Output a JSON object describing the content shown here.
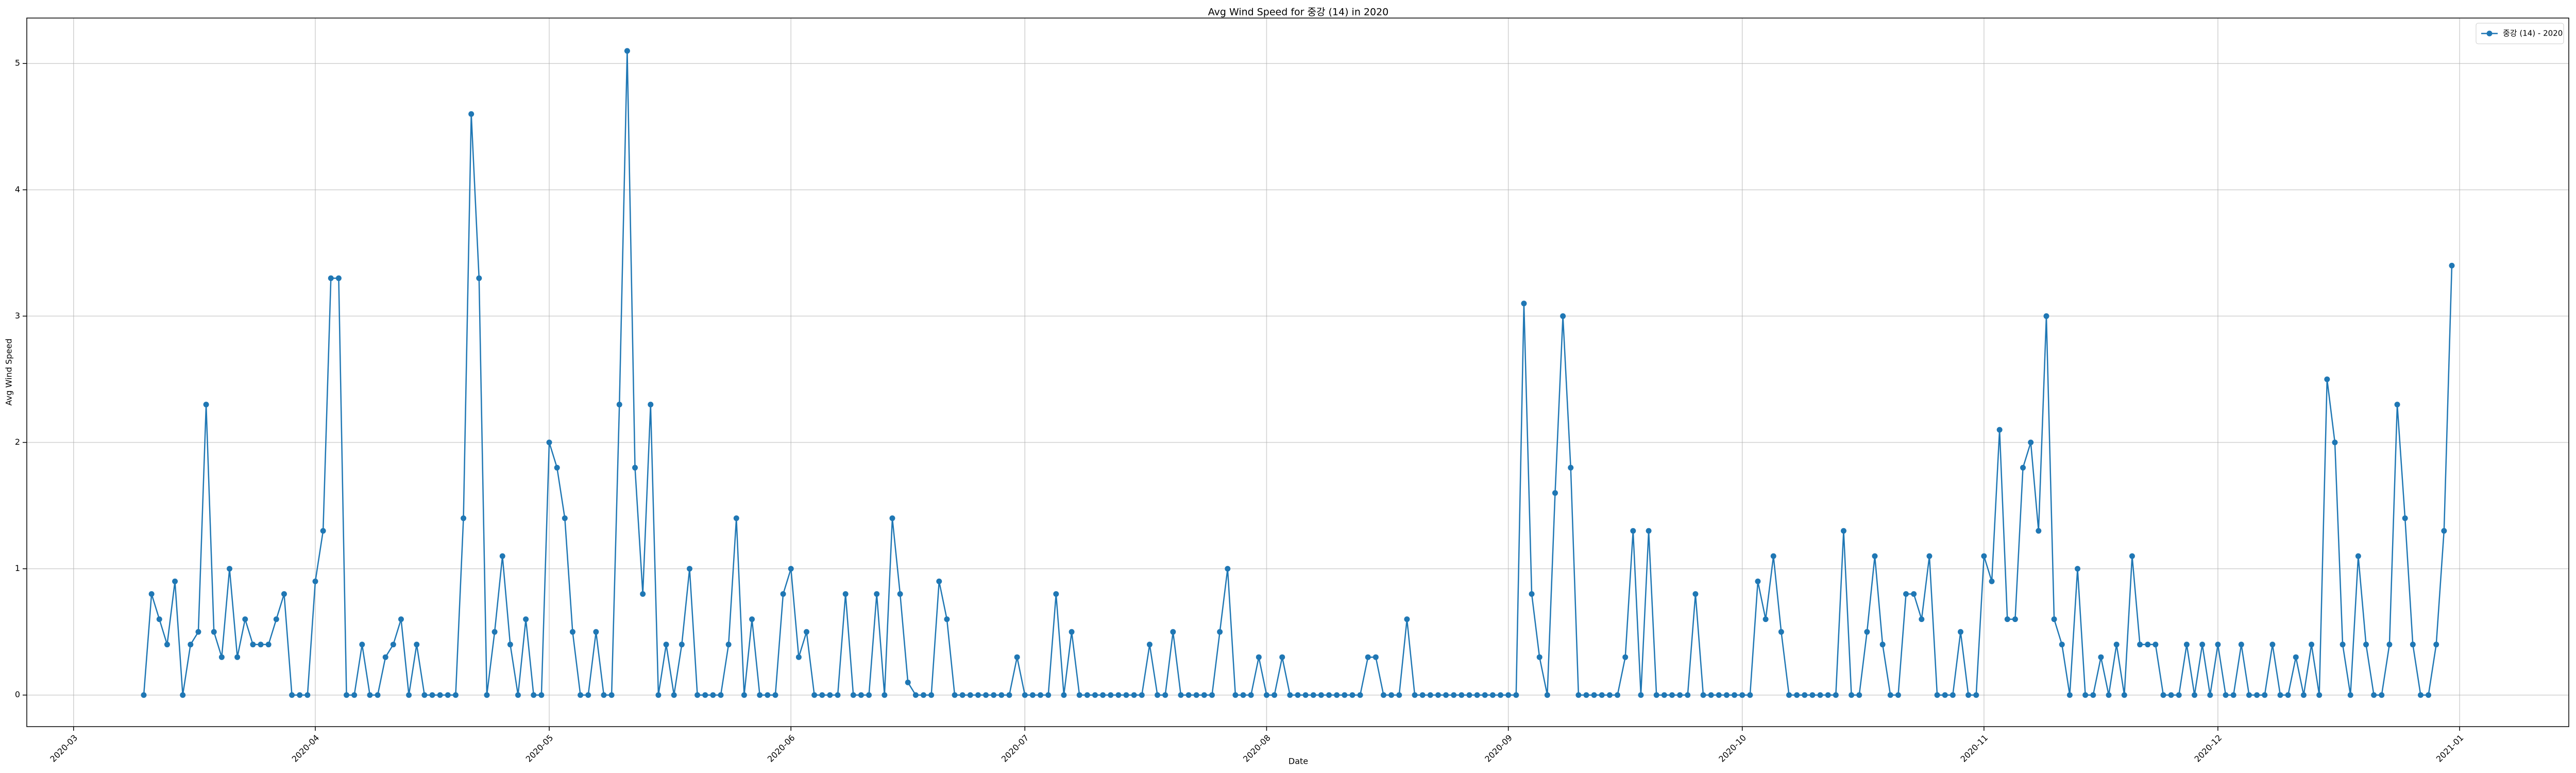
{
  "chart_data": {
    "type": "line",
    "title": "Avg Wind Speed for 중강 (14) in 2020",
    "xlabel": "Date",
    "ylabel": "Avg Wind Speed",
    "x": [
      "2020-03-10",
      "2020-03-11",
      "2020-03-12",
      "2020-03-13",
      "2020-03-14",
      "2020-03-15",
      "2020-03-16",
      "2020-03-17",
      "2020-03-18",
      "2020-03-19",
      "2020-03-20",
      "2020-03-21",
      "2020-03-22",
      "2020-03-23",
      "2020-03-24",
      "2020-03-25",
      "2020-03-26",
      "2020-03-27",
      "2020-03-28",
      "2020-03-29",
      "2020-03-30",
      "2020-03-31",
      "2020-04-01",
      "2020-04-02",
      "2020-04-03",
      "2020-04-04",
      "2020-04-05",
      "2020-04-06",
      "2020-04-07",
      "2020-04-08",
      "2020-04-09",
      "2020-04-10",
      "2020-04-11",
      "2020-04-12",
      "2020-04-13",
      "2020-04-14",
      "2020-04-15",
      "2020-04-16",
      "2020-04-17",
      "2020-04-18",
      "2020-04-19",
      "2020-04-20",
      "2020-04-21",
      "2020-04-22",
      "2020-04-23",
      "2020-04-24",
      "2020-04-25",
      "2020-04-26",
      "2020-04-27",
      "2020-04-28",
      "2020-04-29",
      "2020-04-30",
      "2020-05-01",
      "2020-05-02",
      "2020-05-03",
      "2020-05-04",
      "2020-05-05",
      "2020-05-06",
      "2020-05-07",
      "2020-05-08",
      "2020-05-09",
      "2020-05-10",
      "2020-05-11",
      "2020-05-12",
      "2020-05-13",
      "2020-05-14",
      "2020-05-15",
      "2020-05-16",
      "2020-05-17",
      "2020-05-18",
      "2020-05-19",
      "2020-05-20",
      "2020-05-21",
      "2020-05-22",
      "2020-05-23",
      "2020-05-24",
      "2020-05-25",
      "2020-05-26",
      "2020-05-27",
      "2020-05-28",
      "2020-05-29",
      "2020-05-30",
      "2020-05-31",
      "2020-06-01",
      "2020-06-02",
      "2020-06-03",
      "2020-06-04",
      "2020-06-05",
      "2020-06-06",
      "2020-06-07",
      "2020-06-08",
      "2020-06-09",
      "2020-06-10",
      "2020-06-11",
      "2020-06-12",
      "2020-06-13",
      "2020-06-14",
      "2020-06-15",
      "2020-06-16",
      "2020-06-17",
      "2020-06-18",
      "2020-06-19",
      "2020-06-20",
      "2020-06-21",
      "2020-06-22",
      "2020-06-23",
      "2020-06-24",
      "2020-06-25",
      "2020-06-26",
      "2020-06-27",
      "2020-06-28",
      "2020-06-29",
      "2020-06-30",
      "2020-07-01",
      "2020-07-02",
      "2020-07-03",
      "2020-07-04",
      "2020-07-05",
      "2020-07-06",
      "2020-07-07",
      "2020-07-08",
      "2020-07-09",
      "2020-07-10",
      "2020-07-11",
      "2020-07-12",
      "2020-07-13",
      "2020-07-14",
      "2020-07-15",
      "2020-07-16",
      "2020-07-17",
      "2020-07-18",
      "2020-07-19",
      "2020-07-20",
      "2020-07-21",
      "2020-07-22",
      "2020-07-23",
      "2020-07-24",
      "2020-07-25",
      "2020-07-26",
      "2020-07-27",
      "2020-07-28",
      "2020-07-29",
      "2020-07-30",
      "2020-07-31",
      "2020-08-01",
      "2020-08-02",
      "2020-08-03",
      "2020-08-04",
      "2020-08-05",
      "2020-08-06",
      "2020-08-07",
      "2020-08-08",
      "2020-08-09",
      "2020-08-10",
      "2020-08-11",
      "2020-08-12",
      "2020-08-13",
      "2020-08-14",
      "2020-08-15",
      "2020-08-16",
      "2020-08-17",
      "2020-08-18",
      "2020-08-19",
      "2020-08-20",
      "2020-08-21",
      "2020-08-22",
      "2020-08-23",
      "2020-08-24",
      "2020-08-25",
      "2020-08-26",
      "2020-08-27",
      "2020-08-28",
      "2020-08-29",
      "2020-08-30",
      "2020-08-31",
      "2020-09-01",
      "2020-09-02",
      "2020-09-03",
      "2020-09-04",
      "2020-09-05",
      "2020-09-06",
      "2020-09-07",
      "2020-09-08",
      "2020-09-09",
      "2020-09-10",
      "2020-09-11",
      "2020-09-12",
      "2020-09-13",
      "2020-09-14",
      "2020-09-15",
      "2020-09-16",
      "2020-09-17",
      "2020-09-18",
      "2020-09-19",
      "2020-09-20",
      "2020-09-21",
      "2020-09-22",
      "2020-09-23",
      "2020-09-24",
      "2020-09-25",
      "2020-09-26",
      "2020-09-27",
      "2020-09-28",
      "2020-09-29",
      "2020-09-30",
      "2020-10-01",
      "2020-10-02",
      "2020-10-03",
      "2020-10-04",
      "2020-10-05",
      "2020-10-06",
      "2020-10-07",
      "2020-10-08",
      "2020-10-09",
      "2020-10-10",
      "2020-10-11",
      "2020-10-12",
      "2020-10-13",
      "2020-10-14",
      "2020-10-15",
      "2020-10-16",
      "2020-10-17",
      "2020-10-18",
      "2020-10-19",
      "2020-10-20",
      "2020-10-21",
      "2020-10-22",
      "2020-10-23",
      "2020-10-24",
      "2020-10-25",
      "2020-10-26",
      "2020-10-27",
      "2020-10-28",
      "2020-10-29",
      "2020-10-30",
      "2020-10-31",
      "2020-11-01",
      "2020-11-02",
      "2020-11-03",
      "2020-11-04",
      "2020-11-05",
      "2020-11-06",
      "2020-11-07",
      "2020-11-08",
      "2020-11-09",
      "2020-11-10",
      "2020-11-11",
      "2020-11-12",
      "2020-11-13",
      "2020-11-14",
      "2020-11-15",
      "2020-11-16",
      "2020-11-17",
      "2020-11-18",
      "2020-11-19",
      "2020-11-20",
      "2020-11-21",
      "2020-11-22",
      "2020-11-23",
      "2020-11-24",
      "2020-11-25",
      "2020-11-26",
      "2020-11-27",
      "2020-11-28",
      "2020-11-29",
      "2020-11-30",
      "2020-12-01",
      "2020-12-02",
      "2020-12-03",
      "2020-12-04",
      "2020-12-05",
      "2020-12-06",
      "2020-12-07",
      "2020-12-08",
      "2020-12-09",
      "2020-12-10",
      "2020-12-11",
      "2020-12-12",
      "2020-12-13",
      "2020-12-14",
      "2020-12-15",
      "2020-12-16",
      "2020-12-17",
      "2020-12-18",
      "2020-12-19",
      "2020-12-20",
      "2020-12-21",
      "2020-12-22",
      "2020-12-23",
      "2020-12-24",
      "2020-12-25",
      "2020-12-26",
      "2020-12-27",
      "2020-12-28",
      "2020-12-29",
      "2020-12-30",
      "2020-12-31"
    ],
    "series": [
      {
        "name": "중강 (14) - 2020",
        "color": "#1f77b4",
        "values": [
          0,
          0.8,
          0.6,
          0.4,
          0.9,
          0,
          0.4,
          0.5,
          2.3,
          0.5,
          0.3,
          1.0,
          0.3,
          0.6,
          0.4,
          0.4,
          0.4,
          0.6,
          0.8,
          0,
          0,
          0,
          0.9,
          1.3,
          3.3,
          3.3,
          0,
          0,
          0.4,
          0,
          0,
          0.3,
          0.4,
          0.6,
          0,
          0.4,
          0,
          0,
          0,
          0,
          0,
          1.4,
          4.6,
          3.3,
          0,
          0.5,
          1.1,
          0.4,
          0,
          0.6,
          0,
          0,
          2.0,
          1.8,
          1.4,
          0.5,
          0,
          0,
          0.5,
          0,
          0,
          2.3,
          5.1,
          1.8,
          0.8,
          2.3,
          0,
          0.4,
          0,
          0.4,
          1.0,
          0,
          0,
          0,
          0,
          0.4,
          1.4,
          0,
          0.6,
          0,
          0,
          0,
          0.8,
          1.0,
          0.3,
          0.5,
          0,
          0,
          0,
          0,
          0.8,
          0,
          0,
          0,
          0.8,
          0,
          1.4,
          0.8,
          0.1,
          0,
          0,
          0,
          0.9,
          0.6,
          0,
          0,
          0,
          0,
          0,
          0,
          0,
          0,
          0.3,
          0,
          0,
          0,
          0,
          0.8,
          0,
          0.5,
          0,
          0,
          0,
          0,
          0,
          0,
          0,
          0,
          0,
          0.4,
          0,
          0,
          0.5,
          0,
          0,
          0,
          0,
          0,
          0.5,
          1.0,
          0,
          0,
          0,
          0.3,
          0,
          0,
          0.3,
          0,
          0,
          0,
          0,
          0,
          0,
          0,
          0,
          0,
          0,
          0.3,
          0.3,
          0,
          0,
          0,
          0.6,
          0,
          0,
          0,
          0,
          0,
          0,
          0,
          0,
          0,
          0,
          0,
          0,
          0,
          0,
          3.1,
          0.8,
          0.3,
          0,
          1.6,
          3.0,
          1.8,
          0,
          0,
          0,
          0,
          0,
          0,
          0.3,
          1.3,
          0,
          1.3,
          0,
          0,
          0,
          0,
          0,
          0.8,
          0,
          0,
          0,
          0,
          0,
          0,
          0,
          0.9,
          0.6,
          1.1,
          0.5,
          0,
          0,
          0,
          0,
          0,
          0,
          0,
          1.3,
          0,
          0,
          0.5,
          1.1,
          0.4,
          0,
          0,
          0.8,
          0.8,
          0.6,
          1.1,
          0,
          0,
          0,
          0.5,
          0,
          0,
          1.1,
          0.9,
          2.1,
          0.6,
          0.6,
          1.8,
          2.0,
          1.3,
          3.0,
          0.6,
          0.4,
          0,
          1.0,
          0,
          0,
          0.3,
          0,
          0.4,
          0,
          1.1,
          0.4,
          0.4,
          0.4,
          0,
          0,
          0,
          0.4,
          0,
          0.4,
          0,
          0.4,
          0,
          0,
          0.4,
          0,
          0,
          0,
          0.4,
          0,
          0,
          0.3,
          0,
          0.4,
          0,
          2.5,
          2.0,
          0.4,
          0,
          1.1,
          0.4,
          0,
          0,
          0.4,
          2.3,
          1.4,
          0.4,
          0,
          0,
          0.4,
          1.3,
          3.4
        ]
      }
    ],
    "xlim": [
      "2020-02-24",
      "2021-01-15"
    ],
    "xticks": [
      {
        "value": "2020-03-01",
        "label": "2020-03"
      },
      {
        "value": "2020-04-01",
        "label": "2020-04"
      },
      {
        "value": "2020-05-01",
        "label": "2020-05"
      },
      {
        "value": "2020-06-01",
        "label": "2020-06"
      },
      {
        "value": "2020-07-01",
        "label": "2020-07"
      },
      {
        "value": "2020-08-01",
        "label": "2020-08"
      },
      {
        "value": "2020-09-01",
        "label": "2020-09"
      },
      {
        "value": "2020-10-01",
        "label": "2020-10"
      },
      {
        "value": "2020-11-01",
        "label": "2020-11"
      },
      {
        "value": "2020-12-01",
        "label": "2020-12"
      },
      {
        "value": "2021-01-01",
        "label": "2021-01"
      }
    ],
    "ylim": [
      -0.25,
      5.36
    ],
    "yticks": [
      0,
      1,
      2,
      3,
      4,
      5
    ],
    "grid": true,
    "legend": "upper right"
  }
}
